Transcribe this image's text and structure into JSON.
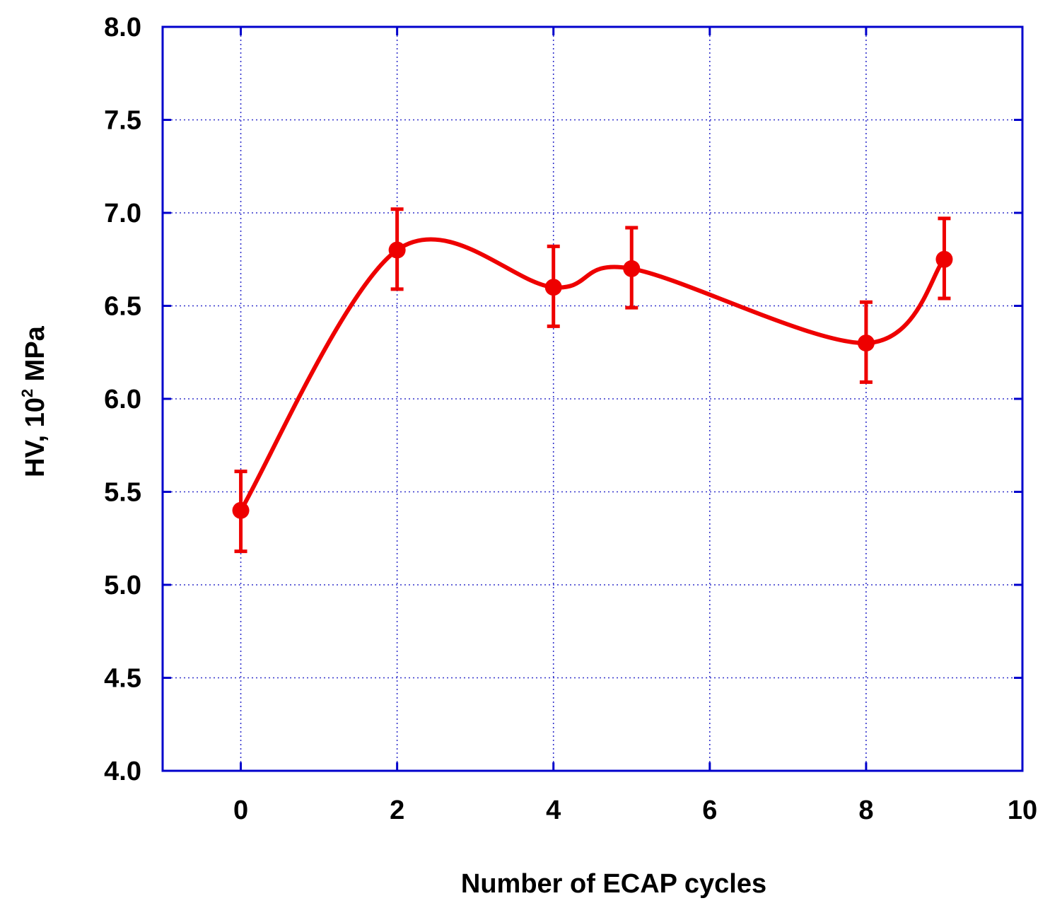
{
  "chart_data": {
    "type": "line",
    "xlabel": "Number of ECAP cycles",
    "ylabel": {
      "prefix": "HV, 10",
      "superscript": "2",
      "suffix": " MPa"
    },
    "xlim": [
      -1,
      10
    ],
    "ylim": [
      4.0,
      8.0
    ],
    "xticks": [
      0,
      2,
      4,
      6,
      8,
      10
    ],
    "yticks": [
      4.0,
      4.5,
      5.0,
      5.5,
      6.0,
      6.5,
      7.0,
      7.5,
      8.0
    ],
    "xtick_labels": [
      "0",
      "2",
      "4",
      "6",
      "8",
      "10"
    ],
    "ytick_labels": [
      "4.0",
      "4.5",
      "5.0",
      "5.5",
      "6.0",
      "6.5",
      "7.0",
      "7.5",
      "8.0"
    ],
    "grid": true,
    "series": [
      {
        "x": [
          0,
          2,
          4,
          5,
          8,
          9
        ],
        "y": [
          5.4,
          6.8,
          6.6,
          6.7,
          6.3,
          6.75
        ],
        "yerr_low": [
          5.18,
          6.59,
          6.39,
          6.49,
          6.09,
          6.54
        ],
        "yerr_high": [
          5.61,
          7.02,
          6.82,
          6.92,
          6.52,
          6.97
        ],
        "smooth": true
      }
    ],
    "colors": {
      "series": "#ee0000",
      "axes": "#0000cc",
      "grid": "#3333cc"
    }
  }
}
